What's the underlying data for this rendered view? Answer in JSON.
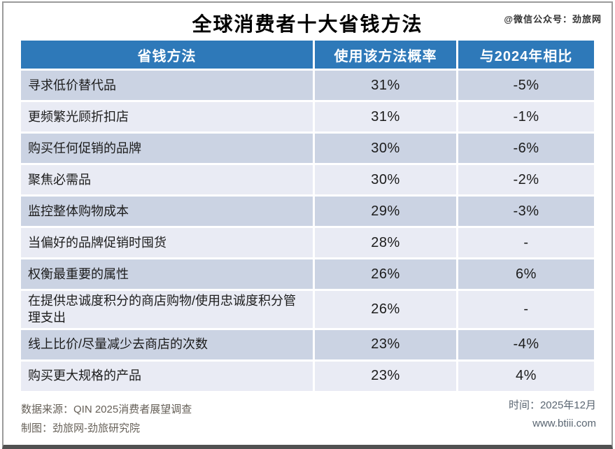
{
  "title": "全球消费者十大省钱方法",
  "watermark": "@微信公众号：劲旅网",
  "table": {
    "headers": [
      "省钱方法",
      "使用该方法概率",
      "与2024年相比"
    ],
    "rows": [
      {
        "method": "寻求低价替代品",
        "probability": "31%",
        "vs2024": "-5%"
      },
      {
        "method": "更频繁光顾折扣店",
        "probability": "31%",
        "vs2024": "-1%"
      },
      {
        "method": "购买任何促销的品牌",
        "probability": "30%",
        "vs2024": "-6%"
      },
      {
        "method": "聚焦必需品",
        "probability": "30%",
        "vs2024": "-2%"
      },
      {
        "method": "监控整体购物成本",
        "probability": "29%",
        "vs2024": "-3%"
      },
      {
        "method": "当偏好的品牌促销时囤货",
        "probability": "28%",
        "vs2024": "-"
      },
      {
        "method": "权衡最重要的属性",
        "probability": "26%",
        "vs2024": "6%"
      },
      {
        "method": "在提供忠诚度积分的商店购物/使用忠诚度积分管理支出",
        "probability": "26%",
        "vs2024": "-"
      },
      {
        "method": "线上比价/尽量减少去商店的次数",
        "probability": "23%",
        "vs2024": "-4%"
      },
      {
        "method": "购买更大规格的产品",
        "probability": "23%",
        "vs2024": "4%"
      }
    ]
  },
  "footer": {
    "source_line1": "数据来源：QIN 2025消费者展望调查",
    "source_line2": "制图：劲旅网-劲旅研究院",
    "time_label": "时间：2025年12月",
    "website": "www.btiii.com"
  },
  "colors": {
    "header_bg": "#2E79B9",
    "header_text": "#FFFFFF",
    "row_dark": "#CBD3E3",
    "row_light": "#E9EBF4",
    "title_text": "#000000",
    "body_text": "#1C1C1C",
    "watermark_text": "#333333",
    "footer_text": "#666058",
    "meta_text": "#5A6672",
    "frame_border": "#9B9B9B",
    "frame_bottom": "#515151"
  },
  "chart_data": {
    "type": "table",
    "title": "全球消费者十大省钱方法",
    "columns": [
      "省钱方法",
      "使用该方法概率",
      "与2024年相比"
    ],
    "rows": [
      [
        "寻求低价替代品",
        "31%",
        "-5%"
      ],
      [
        "更频繁光顾折扣店",
        "31%",
        "-1%"
      ],
      [
        "购买任何促销的品牌",
        "30%",
        "-6%"
      ],
      [
        "聚焦必需品",
        "30%",
        "-2%"
      ],
      [
        "监控整体购物成本",
        "29%",
        "-3%"
      ],
      [
        "当偏好的品牌促销时囤货",
        "28%",
        "-"
      ],
      [
        "权衡最重要的属性",
        "26%",
        "6%"
      ],
      [
        "在提供忠诚度积分的商店购物/使用忠诚度积分管理支出",
        "26%",
        "-"
      ],
      [
        "线上比价/尽量减少去商店的次数",
        "23%",
        "-4%"
      ],
      [
        "购买更大规格的产品",
        "23%",
        "4%"
      ]
    ],
    "probability_pct": [
      31,
      31,
      30,
      30,
      29,
      28,
      26,
      26,
      23,
      23
    ],
    "change_vs_2024_pct": [
      -5,
      -1,
      -6,
      -2,
      -3,
      null,
      6,
      null,
      -4,
      4
    ],
    "source": "数据来源：QIN 2025消费者展望调查",
    "credit": "制图：劲旅网-劲旅研究院",
    "date": "2025年12月",
    "website": "www.btiii.com"
  }
}
